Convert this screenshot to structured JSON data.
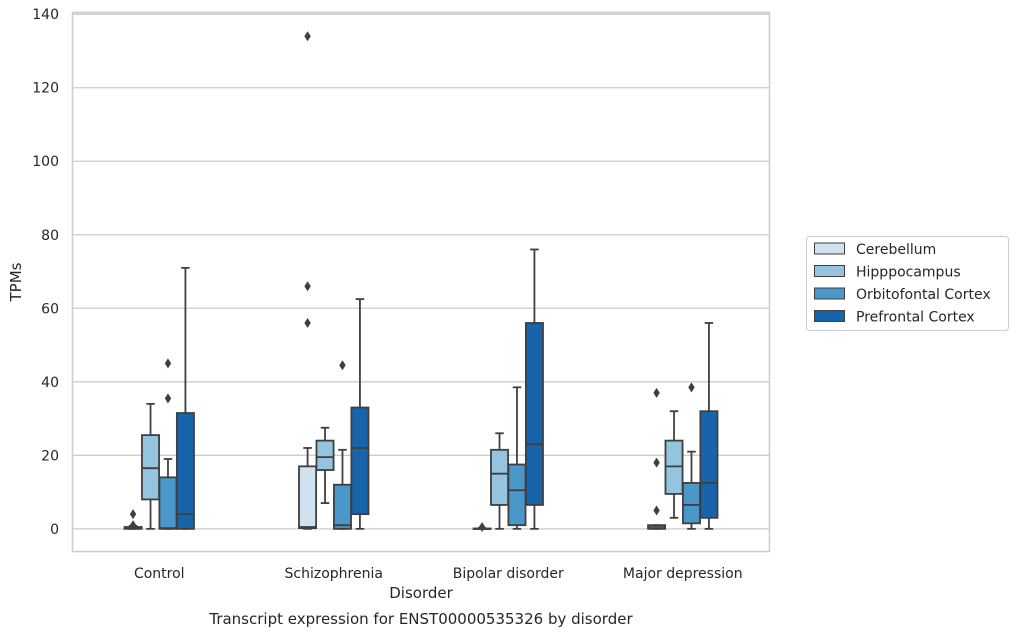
{
  "chart_data": {
    "type": "box",
    "title": "",
    "caption": "Transcript expression for ENST00000535326 by disorder",
    "xlabel": "Disorder",
    "ylabel": "TPMs",
    "ylim": [
      -6.3,
      140.6
    ],
    "yticks": [
      0,
      20,
      40,
      60,
      80,
      100,
      120,
      140
    ],
    "ytick_labels": [
      "0",
      "20",
      "40",
      "60",
      "80",
      "100",
      "120",
      "140"
    ],
    "grid": true,
    "legend_position": "right",
    "categories": [
      "Control",
      "Schizophrenia",
      "Bipolar disorder",
      "Major depression"
    ],
    "series": [
      {
        "name": "Cerebellum",
        "color": "#d0e1f2",
        "boxes": [
          {
            "whislo": 0.0,
            "q1": 0.0,
            "med": 0.3,
            "q3": 0.5,
            "whishi": 0.8,
            "fliers": [
              4.0,
              1.0
            ]
          },
          {
            "whislo": 0.0,
            "q1": 0.2,
            "med": 0.5,
            "q3": 17.0,
            "whishi": 22.0,
            "fliers": [
              134.0,
              66.0,
              56.0
            ]
          },
          {
            "whislo": 0.0,
            "q1": 0.0,
            "med": 0.0,
            "q3": 0.1,
            "whishi": 0.2,
            "fliers": [
              0.5
            ]
          },
          {
            "whislo": 0.0,
            "q1": 0.0,
            "med": 0.5,
            "q3": 1.0,
            "whishi": 1.0,
            "fliers": [
              37.0,
              18.0,
              5.0
            ]
          }
        ]
      },
      {
        "name": "Hipppocampus",
        "color": "#94c4df",
        "boxes": [
          {
            "whislo": 0.0,
            "q1": 8.0,
            "med": 16.5,
            "q3": 25.5,
            "whishi": 34.0,
            "fliers": []
          },
          {
            "whislo": 7.0,
            "q1": 16.0,
            "med": 19.5,
            "q3": 24.0,
            "whishi": 27.5,
            "fliers": []
          },
          {
            "whislo": 0.0,
            "q1": 6.5,
            "med": 15.0,
            "q3": 21.5,
            "whishi": 26.0,
            "fliers": []
          },
          {
            "whislo": 3.0,
            "q1": 9.5,
            "med": 17.0,
            "q3": 24.0,
            "whishi": 32.0,
            "fliers": []
          }
        ]
      },
      {
        "name": "Orbitofontal Cortex",
        "color": "#4a98c9",
        "boxes": [
          {
            "whislo": 0.0,
            "q1": 0.0,
            "med": 0.2,
            "q3": 14.0,
            "whishi": 19.0,
            "fliers": [
              45.0,
              35.5
            ]
          },
          {
            "whislo": 0.0,
            "q1": 0.0,
            "med": 1.0,
            "q3": 12.0,
            "whishi": 21.5,
            "fliers": [
              44.5
            ]
          },
          {
            "whislo": 0.0,
            "q1": 1.0,
            "med": 10.5,
            "q3": 17.5,
            "whishi": 38.5,
            "fliers": []
          },
          {
            "whislo": 0.0,
            "q1": 1.5,
            "med": 6.5,
            "q3": 12.5,
            "whishi": 21.0,
            "fliers": [
              38.5
            ]
          }
        ]
      },
      {
        "name": "Prefrontal Cortex",
        "color": "#1764ab",
        "boxes": [
          {
            "whislo": 0.0,
            "q1": 0.0,
            "med": 4.0,
            "q3": 31.5,
            "whishi": 71.0,
            "fliers": []
          },
          {
            "whislo": 0.0,
            "q1": 4.0,
            "med": 22.0,
            "q3": 33.0,
            "whishi": 62.5,
            "fliers": []
          },
          {
            "whislo": 0.0,
            "q1": 6.5,
            "med": 23.0,
            "q3": 56.0,
            "whishi": 76.0,
            "fliers": []
          },
          {
            "whislo": 0.0,
            "q1": 3.0,
            "med": 12.5,
            "q3": 32.0,
            "whishi": 56.0,
            "fliers": []
          }
        ]
      }
    ]
  }
}
